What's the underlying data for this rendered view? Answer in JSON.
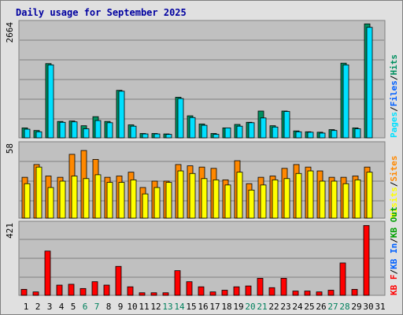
{
  "title": "Daily usage for September 2025",
  "chart_data": [
    {
      "type": "bar",
      "panel": "top",
      "max_label": "2664",
      "ylim": [
        0,
        2664
      ],
      "legend": [
        "Pages",
        "/",
        "Files",
        "/",
        "Hits"
      ],
      "series": [
        {
          "name": "Hits",
          "color": "#009060",
          "values": [
            230,
            170,
            1720,
            380,
            390,
            280,
            490,
            380,
            1100,
            300,
            100,
            100,
            90,
            940,
            510,
            320,
            100,
            230,
            310,
            360,
            620,
            280,
            620,
            160,
            140,
            130,
            190,
            1730,
            230,
            2640
          ]
        },
        {
          "name": "Files",
          "color": "#00e0ff",
          "values": [
            200,
            140,
            1690,
            360,
            370,
            210,
            400,
            350,
            1080,
            270,
            90,
            90,
            80,
            910,
            470,
            290,
            80,
            230,
            270,
            350,
            460,
            250,
            610,
            140,
            130,
            110,
            170,
            1690,
            210,
            2560
          ]
        }
      ]
    },
    {
      "type": "bar",
      "panel": "middle",
      "max_label": "58",
      "ylim": [
        0,
        58
      ],
      "legend": [
        "Visits",
        "/",
        "Sites"
      ],
      "series": [
        {
          "name": "Sites",
          "color": "#ff8800",
          "values": [
            32,
            42,
            33,
            32,
            50,
            53,
            46,
            32,
            33,
            36,
            24,
            29,
            29,
            42,
            41,
            40,
            39,
            30,
            45,
            27,
            32,
            33,
            39,
            42,
            40,
            37,
            32,
            32,
            33,
            40
          ]
        },
        {
          "name": "Visits",
          "color": "#ffff00",
          "values": [
            27,
            40,
            24,
            29,
            33,
            31,
            34,
            28,
            28,
            30,
            19,
            24,
            28,
            37,
            35,
            31,
            30,
            26,
            36,
            22,
            26,
            30,
            31,
            35,
            37,
            29,
            29,
            27,
            30,
            36
          ]
        }
      ]
    },
    {
      "type": "bar",
      "panel": "bottom",
      "max_label": "421",
      "ylim": [
        0,
        421
      ],
      "legend": [
        "KB F",
        "/",
        "KB In",
        "/",
        "KB Out"
      ],
      "series": [
        {
          "name": "KB F",
          "color": "#ff0000",
          "values": [
            35,
            20,
            260,
            60,
            65,
            40,
            80,
            60,
            170,
            50,
            15,
            15,
            15,
            145,
            80,
            50,
            20,
            30,
            50,
            55,
            100,
            45,
            100,
            25,
            25,
            20,
            30,
            190,
            35,
            410
          ]
        }
      ]
    }
  ],
  "days": [
    "1",
    "2",
    "3",
    "4",
    "5",
    "6",
    "7",
    "8",
    "9",
    "10",
    "11",
    "12",
    "13",
    "14",
    "15",
    "16",
    "17",
    "18",
    "19",
    "20",
    "21",
    "22",
    "23",
    "24",
    "25",
    "26",
    "27",
    "28",
    "29",
    "30",
    "31"
  ],
  "weekend_days": [
    "6",
    "7",
    "13",
    "14",
    "20",
    "21",
    "27",
    "28"
  ],
  "colors": {
    "title": "#0000a0",
    "plot_bg": "#c0c0c0",
    "frame_bg": "#e0e0e0",
    "grid": "#808080",
    "weekday_label": "#000000",
    "weekend_label": "#00805c",
    "legend_sep": "#000000"
  }
}
